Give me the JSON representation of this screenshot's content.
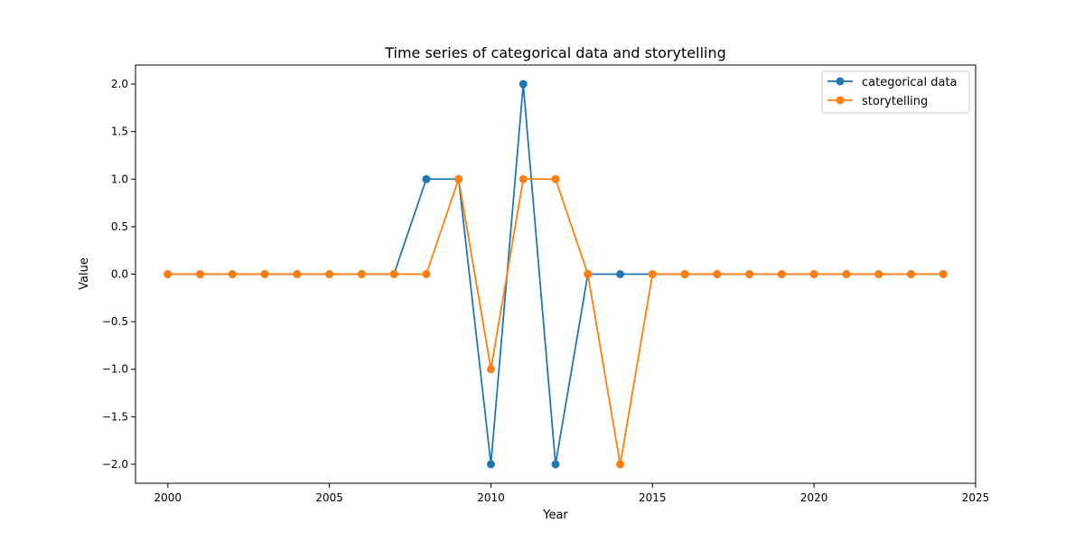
{
  "chart_data": {
    "type": "line",
    "title": "Time series of categorical data and storytelling",
    "xlabel": "Year",
    "ylabel": "Value",
    "xlim": [
      1999,
      2025
    ],
    "ylim": [
      -2.2,
      2.2
    ],
    "xticks": [
      2000,
      2005,
      2010,
      2015,
      2020,
      2025
    ],
    "yticks": [
      2.0,
      1.5,
      1.0,
      0.5,
      0.0,
      -0.5,
      -1.0,
      -1.5,
      -2.0
    ],
    "xtick_labels": [
      "2000",
      "2005",
      "2010",
      "2015",
      "2020",
      "2025"
    ],
    "ytick_labels": [
      "2.0",
      "1.5",
      "1.0",
      "0.5",
      "0.0",
      "−0.5",
      "−1.0",
      "−1.5",
      "−2.0"
    ],
    "grid": false,
    "legend_position": "top-right",
    "x": [
      2000,
      2001,
      2002,
      2003,
      2004,
      2005,
      2006,
      2007,
      2008,
      2009,
      2010,
      2011,
      2012,
      2013,
      2014,
      2015,
      2016,
      2017,
      2018,
      2019,
      2020,
      2021,
      2022,
      2023,
      2024
    ],
    "series": [
      {
        "name": "categorical data",
        "color": "#1f77b4",
        "values": [
          0,
          0,
          0,
          0,
          0,
          0,
          0,
          0,
          1,
          1,
          -2,
          2,
          -2,
          0,
          0,
          0,
          0,
          0,
          0,
          0,
          0,
          0,
          0,
          0,
          0
        ]
      },
      {
        "name": "storytelling",
        "color": "#ff7f0e",
        "values": [
          0,
          0,
          0,
          0,
          0,
          0,
          0,
          0,
          0,
          1,
          -1,
          1,
          1,
          0,
          -2,
          0,
          0,
          0,
          0,
          0,
          0,
          0,
          0,
          0,
          0
        ]
      }
    ]
  }
}
